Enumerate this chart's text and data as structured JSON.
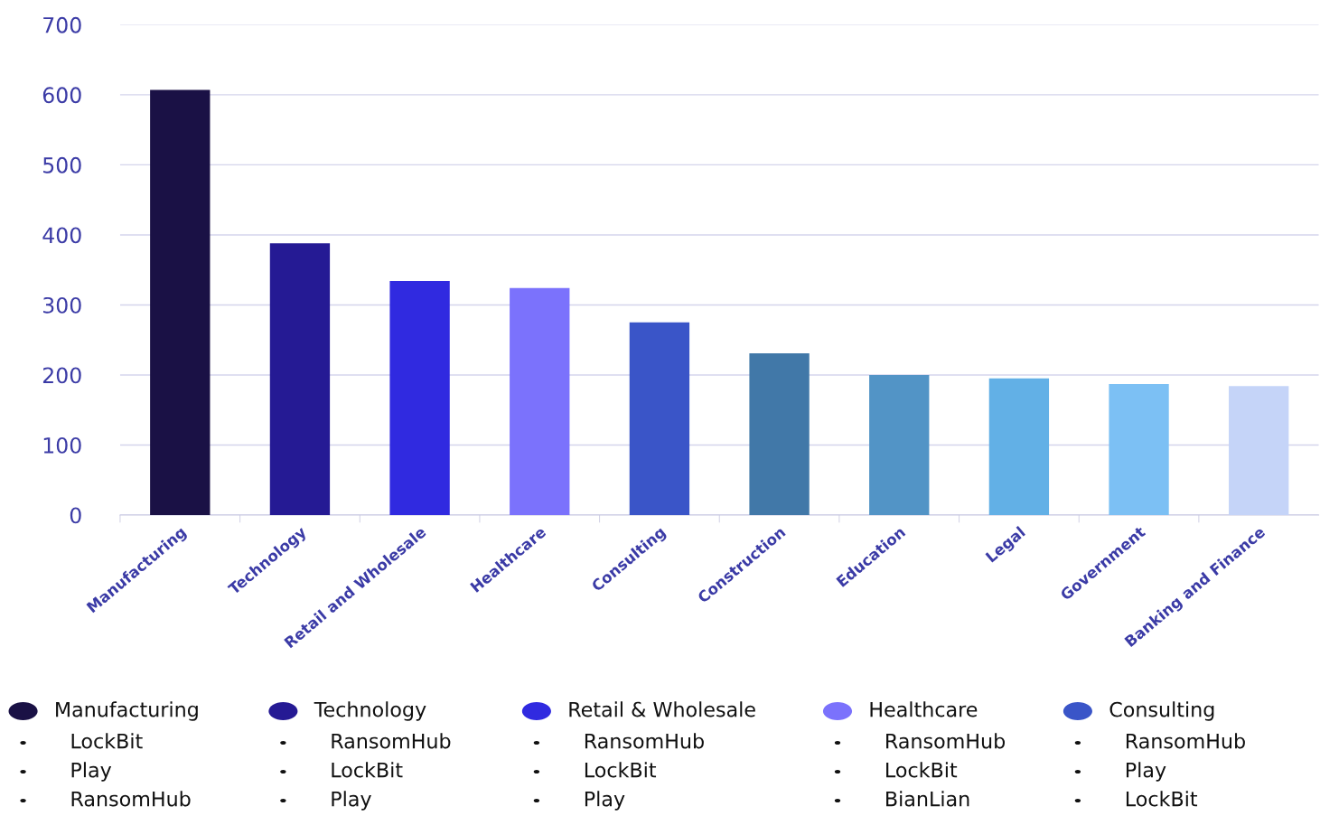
{
  "chart_data": {
    "type": "bar",
    "categories": [
      "Manufacturing",
      "Technology",
      "Retail and Wholesale",
      "Healthcare",
      "Consulting",
      "Construction",
      "Education",
      "Legal",
      "Government",
      "Banking and Finance"
    ],
    "values": [
      607,
      388,
      334,
      324,
      275,
      231,
      200,
      195,
      187,
      184
    ],
    "colors": [
      "#1a1145",
      "#251a94",
      "#302ae0",
      "#7b72fc",
      "#3a55c8",
      "#4178a8",
      "#5294c6",
      "#62b0e6",
      "#7cc0f4",
      "#c5d4f8"
    ],
    "ylim": [
      0,
      700
    ],
    "yticks": [
      0,
      100,
      200,
      300,
      400,
      500,
      600,
      700
    ],
    "grid": "y",
    "annotations": [
      "Manufacturing",
      "LockBit",
      "Play",
      "RansomHub",
      "Technology",
      "RansomHub",
      "LockBit",
      "Play",
      "Retail & Wholesale",
      "RansomHub",
      "LockBit",
      "Play",
      "Healthcare",
      "RansomHub",
      "LockBit",
      "BianLian",
      "Consulting",
      "RansomHub",
      "Play",
      "LockBit"
    ]
  }
}
